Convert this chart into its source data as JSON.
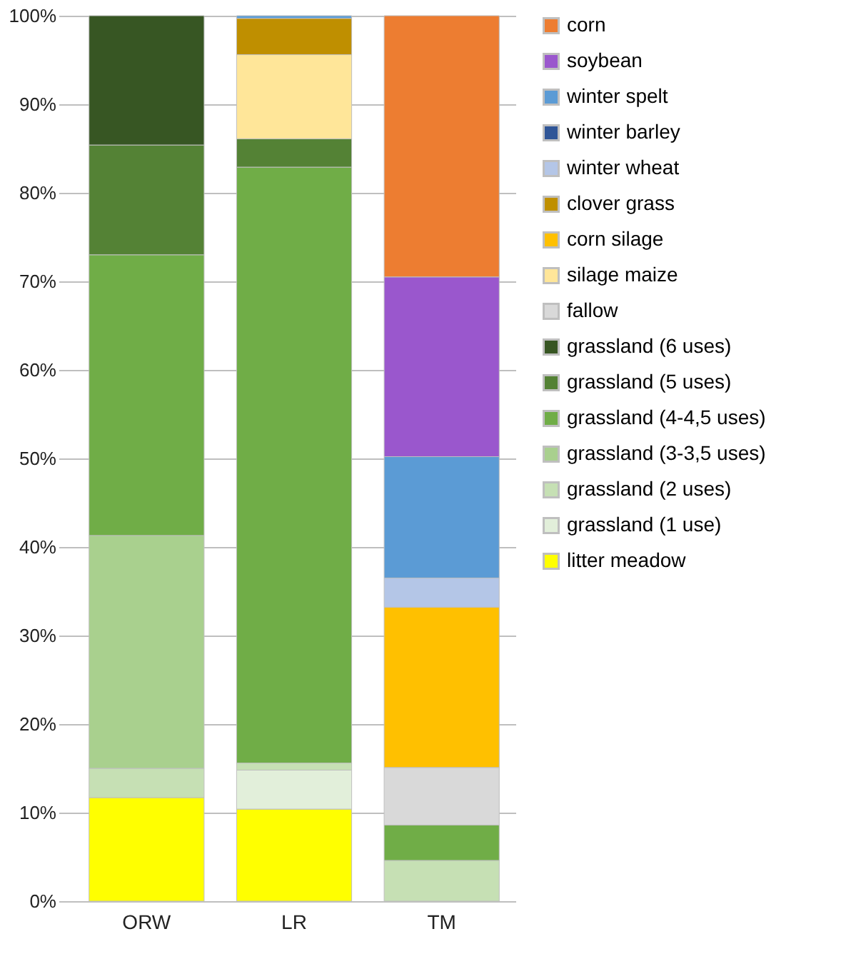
{
  "chart_data": {
    "type": "bar",
    "stacked": true,
    "categories": [
      "ORW",
      "LR",
      "TM"
    ],
    "series": [
      {
        "name": "litter meadow",
        "color": "#ffff00",
        "values": [
          11.7,
          10.4,
          null
        ]
      },
      {
        "name": "grassland (1 use)",
        "color": "#e2efda",
        "values": [
          null,
          4.4,
          null
        ]
      },
      {
        "name": "grassland (2 uses)",
        "color": "#c6e0b4",
        "values": [
          3.3,
          0.8,
          4.6
        ]
      },
      {
        "name": "grassland (3-3,5 uses)",
        "color": "#a9d08e",
        "values": [
          26.3,
          null,
          null
        ]
      },
      {
        "name": "grassland (4-4,5 uses)",
        "color": "#70ad47",
        "values": [
          31.7,
          67.3,
          4.0
        ]
      },
      {
        "name": "grassland (5 uses)",
        "color": "#548235",
        "values": [
          12.4,
          3.2,
          null
        ]
      },
      {
        "name": "grassland (6 uses)",
        "color": "#375623",
        "values": [
          14.6,
          null,
          null
        ]
      },
      {
        "name": "fallow",
        "color": "#d9d9d9",
        "values": [
          null,
          null,
          6.5
        ]
      },
      {
        "name": "silage maize",
        "color": "#ffe699",
        "values": [
          null,
          9.5,
          null
        ]
      },
      {
        "name": "corn silage",
        "color": "#ffc000",
        "values": [
          null,
          null,
          18.1
        ]
      },
      {
        "name": "clover grass",
        "color": "#bf8f00",
        "values": [
          null,
          4.1,
          null
        ]
      },
      {
        "name": "winter wheat",
        "color": "#b4c6e7",
        "values": [
          null,
          null,
          3.3
        ]
      },
      {
        "name": "winter barley",
        "color": "#2f5597",
        "values": [
          null,
          null,
          null
        ]
      },
      {
        "name": "winter spelt",
        "color": "#5b9bd5",
        "values": [
          null,
          0.3,
          13.7
        ]
      },
      {
        "name": "soybean",
        "color": "#9a57cd",
        "values": [
          null,
          null,
          20.3
        ]
      },
      {
        "name": "corn",
        "color": "#ed7d31",
        "values": [
          null,
          null,
          29.5
        ]
      }
    ],
    "ylim": [
      0,
      100
    ],
    "yticks": [
      {
        "value": 0,
        "label": "0%"
      },
      {
        "value": 10,
        "label": "10%"
      },
      {
        "value": 20,
        "label": "20%"
      },
      {
        "value": 30,
        "label": "30%"
      },
      {
        "value": 40,
        "label": "40%"
      },
      {
        "value": 50,
        "label": "50%"
      },
      {
        "value": 60,
        "label": "60%"
      },
      {
        "value": 70,
        "label": "70%"
      },
      {
        "value": 80,
        "label": "80%"
      },
      {
        "value": 90,
        "label": "90%"
      },
      {
        "value": 100,
        "label": "100%"
      }
    ],
    "grid": "y",
    "legend": "right"
  }
}
